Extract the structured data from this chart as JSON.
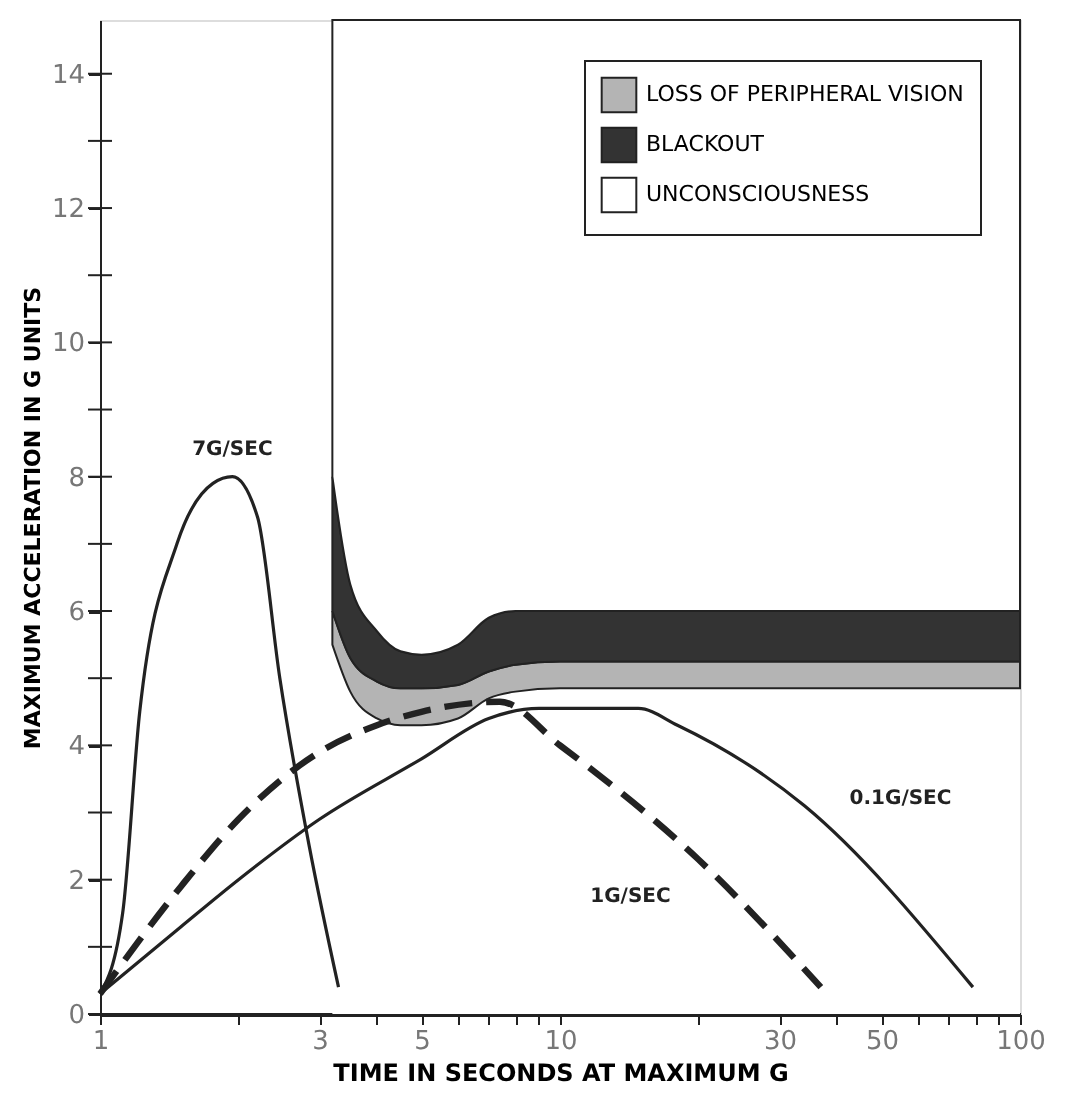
{
  "chart_data": {
    "type": "area",
    "stacked": true,
    "xlabel": "TIME IN SECONDS AT MAXIMUM G",
    "ylabel": "MAXIMUM ACCELERATION IN G UNITS",
    "log": "x",
    "xlim": [
      1,
      100
    ],
    "ylim": [
      0,
      14.8
    ],
    "xticks": [
      1,
      {
        "value": 2,
        "label": null
      },
      3,
      {
        "value": 4,
        "label": null
      },
      5,
      {
        "value": 6,
        "label": null
      },
      {
        "value": 7,
        "label": null
      },
      {
        "value": 8,
        "label": null
      },
      {
        "value": 9,
        "label": null
      },
      10,
      {
        "value": 20,
        "label": null
      },
      30,
      {
        "value": 40,
        "label": null
      },
      50,
      {
        "value": 60,
        "label": null
      },
      {
        "value": 70,
        "label": null
      },
      {
        "value": 80,
        "label": null
      },
      {
        "value": 90,
        "label": null
      },
      100
    ],
    "yticks": [
      0,
      {
        "value": 1,
        "label": null
      },
      2,
      {
        "value": 3,
        "label": null
      },
      4,
      {
        "value": 5,
        "label": null
      },
      6,
      {
        "value": 7,
        "label": null
      },
      8,
      {
        "value": 9,
        "label": null
      },
      10,
      {
        "value": 11,
        "label": null
      },
      12,
      {
        "value": 13,
        "label": null
      },
      14
    ],
    "grid": false,
    "legend": "top right",
    "series": [
      {
        "color": "#ffffff",
        "x": [
          3.2,
          3.5,
          4,
          4.5,
          5,
          6,
          7,
          8,
          10,
          20,
          50,
          100
        ],
        "values": [
          5.5,
          4.8,
          4.4,
          4.3,
          4.3,
          4.4,
          4.7,
          4.8,
          4.85,
          4.85,
          4.85,
          4.85
        ]
      },
      {
        "name": "LOSS OF PERIPHERAL VISION",
        "color": "#b4b4b4",
        "x": [
          3.2,
          3.5,
          4,
          4.5,
          5,
          6,
          7,
          8,
          10,
          20,
          50,
          100
        ],
        "values": [
          0.5,
          0.5,
          0.55,
          0.55,
          0.55,
          0.5,
          0.4,
          0.4,
          0.4,
          0.4,
          0.4,
          0.4
        ]
      },
      {
        "name": "BLACKOUT",
        "color": "#333333",
        "x": [
          3.2,
          3.5,
          4,
          4.5,
          5,
          6,
          7,
          8,
          10,
          20,
          50,
          100
        ],
        "values": [
          2.0,
          1.1,
          0.75,
          0.55,
          0.5,
          0.6,
          0.8,
          0.8,
          0.75,
          0.75,
          0.75,
          0.75
        ]
      },
      {
        "name": "UNCONSCIOUSNESS",
        "color": "#ffffff",
        "x": [
          3.2,
          3.5,
          4,
          4.5,
          5,
          6,
          7,
          8,
          10,
          20,
          50,
          100
        ],
        "values": [
          6.8,
          8.4,
          9.1,
          9.4,
          9.45,
          9.3,
          8.9,
          8.8,
          8.8,
          8.8,
          8.8,
          8.8
        ]
      },
      {
        "name": "7G/SEC",
        "type": "line",
        "color": "#222222",
        "line_style": "solid",
        "x": [
          1,
          1.12,
          1.22,
          1.47,
          1.76,
          1.94,
          2.2,
          2.46,
          2.85,
          3.3
        ],
        "values": [
          0.3,
          1.5,
          4.5,
          7.0,
          7.9,
          8.0,
          7.4,
          5.0,
          2.5,
          0.4
        ]
      },
      {
        "name": "1G/SEC",
        "type": "line",
        "color": "#222222",
        "line_style": "dashed",
        "x": [
          1,
          1.5,
          2,
          3,
          4,
          5,
          7.4,
          10,
          20,
          36.9
        ],
        "values": [
          0.3,
          1.9,
          2.9,
          3.9,
          4.3,
          4.5,
          4.65,
          4.0,
          2.3,
          0.4
        ]
      },
      {
        "name": "0.1G/SEC",
        "type": "line",
        "color": "#222222",
        "line_style": "solid",
        "x": [
          1,
          1.5,
          2,
          3,
          5,
          7,
          9,
          14.8,
          18,
          34,
          79
        ],
        "values": [
          0.3,
          1.3,
          2.0,
          2.9,
          3.8,
          4.4,
          4.55,
          4.55,
          4.3,
          3.1,
          0.4
        ]
      }
    ]
  }
}
